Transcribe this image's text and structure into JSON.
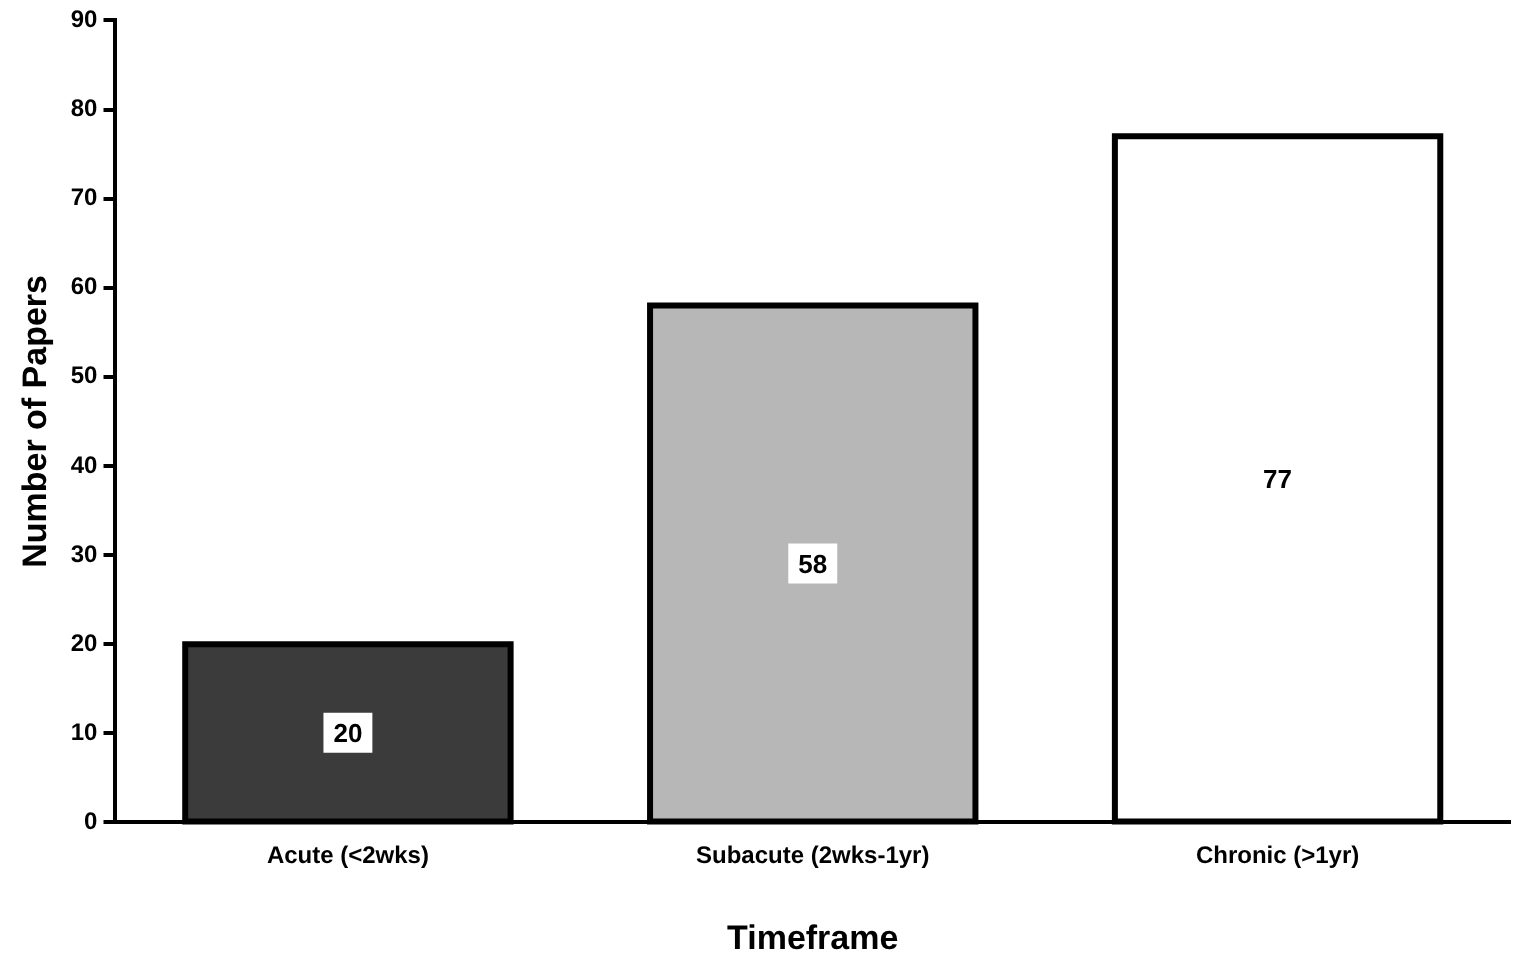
{
  "chart_data": {
    "type": "bar",
    "xlabel": "Timeframe",
    "ylabel": "Number of Papers",
    "categories": [
      "Acute (<2wks)",
      "Subacute (2wks-1yr)",
      "Chronic (>1yr)"
    ],
    "values": [
      20,
      58,
      77
    ],
    "colors": [
      "#3b3b3b",
      "#b7b7b7",
      "#ffffff"
    ],
    "ylim": [
      0,
      90
    ],
    "yticks": [
      0,
      10,
      20,
      30,
      40,
      50,
      60,
      70,
      80,
      90
    ],
    "data_labels": true,
    "grid": false
  }
}
